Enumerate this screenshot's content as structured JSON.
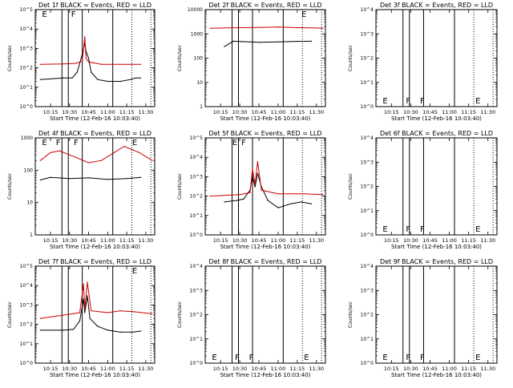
{
  "chart_data": [
    {
      "type": "line",
      "title": "Det 1f BLACK = Events, RED = LLD",
      "xlabel": "Start Time (12-Feb-16 10:03:40)",
      "ylabel": "Counts/sec",
      "y_scale": "log",
      "ylim": [
        1,
        100000
      ],
      "x_tick_labels": [
        "10:15",
        "10:30",
        "10:45",
        "11:00",
        "11:15",
        "11:30"
      ],
      "y_tick_labels": [
        "10^0",
        "10^1",
        "10^2",
        "10^3",
        "10^4",
        "10^5"
      ],
      "y_ticks": [
        1,
        10,
        100,
        1000,
        10000,
        100000
      ],
      "markers": [
        {
          "label": "E",
          "x": "10:07"
        },
        {
          "label": "F",
          "x": "10:30"
        }
      ],
      "series": [
        {
          "name": "Events",
          "color": "#000000",
          "x": [
            "10:07",
            "10:25",
            "10:32",
            "10:36",
            "10:40",
            "10:42",
            "10:43",
            "10:45",
            "10:47",
            "10:52",
            "11:00",
            "11:10",
            "11:18",
            "11:22",
            "11:26"
          ],
          "values": [
            25,
            30,
            30,
            60,
            500,
            1800,
            700,
            300,
            60,
            25,
            20,
            20,
            25,
            30,
            30
          ]
        },
        {
          "name": "LLD",
          "color": "#cc0000",
          "x": [
            "10:07",
            "10:25",
            "10:35",
            "10:40",
            "10:42",
            "10:43",
            "10:45",
            "10:55",
            "11:10",
            "11:26"
          ],
          "values": [
            150,
            160,
            170,
            220,
            4000,
            300,
            200,
            150,
            150,
            150
          ]
        }
      ]
    },
    {
      "type": "line",
      "title": "Det 2f BLACK = Events, RED = LLD",
      "xlabel": "Start Time (12-Feb-16 10:03:40)",
      "ylabel": "Counts/sec",
      "y_scale": "log",
      "ylim": [
        1,
        10000
      ],
      "x_tick_labels": [
        "10:15",
        "10:30",
        "10:45",
        "11:00",
        "11:15",
        "11:30"
      ],
      "y_tick_labels": [
        "1",
        "10",
        "100",
        "1000",
        "10000"
      ],
      "y_ticks": [
        1,
        10,
        100,
        1000,
        10000
      ],
      "markers": [
        {
          "label": "E",
          "x": "11:17"
        }
      ],
      "series": [
        {
          "name": "Events",
          "color": "#000000",
          "x": [
            "10:18",
            "10:25",
            "10:32",
            "10:45",
            "11:00",
            "11:15",
            "11:26"
          ],
          "values": [
            300,
            500,
            480,
            450,
            470,
            490,
            500
          ]
        },
        {
          "name": "LLD",
          "color": "#cc0000",
          "x": [
            "10:07",
            "10:30",
            "10:45",
            "11:00",
            "11:15",
            "11:30",
            "11:35"
          ],
          "values": [
            1700,
            1800,
            1850,
            1900,
            1800,
            1750,
            1700
          ]
        }
      ]
    },
    {
      "type": "line",
      "title": "Det 3f BLACK = Events, RED = LLD",
      "xlabel": "Start Time (12-Feb-16 10:03:40)",
      "ylabel": "Counts/sec",
      "y_scale": "log",
      "ylim": [
        1,
        10000
      ],
      "x_tick_labels": [
        "10:15",
        "10:30",
        "10:45",
        "11:00",
        "11:15",
        "11:30"
      ],
      "y_tick_labels": [
        "10^0",
        "10^1",
        "10^2",
        "10^3",
        "10^4"
      ],
      "y_ticks": [
        1,
        10,
        100,
        1000,
        10000
      ],
      "markers": [
        {
          "label": "E",
          "x": "10:07"
        },
        {
          "label": "F",
          "x": "10:25"
        },
        {
          "label": "F",
          "x": "10:36"
        },
        {
          "label": "E",
          "x": "11:19"
        }
      ],
      "series": []
    },
    {
      "type": "line",
      "title": "Det 4f BLACK = Events, RED = LLD",
      "xlabel": "Start Time (12-Feb-16 10:03:40)",
      "ylabel": "Counts/sec",
      "y_scale": "log",
      "ylim": [
        1,
        1000
      ],
      "x_tick_labels": [
        "10:15",
        "10:30",
        "10:45",
        "11:00",
        "11:15",
        "11:30"
      ],
      "y_tick_labels": [
        "1",
        "10",
        "100",
        "1000"
      ],
      "y_ticks": [
        1,
        10,
        100,
        1000
      ],
      "markers": [
        {
          "label": "E",
          "x": "10:07"
        },
        {
          "label": "F",
          "x": "10:18"
        },
        {
          "label": "F",
          "x": "10:32"
        },
        {
          "label": "E",
          "x": "11:18"
        }
      ],
      "series": [
        {
          "name": "Events",
          "color": "#000000",
          "x": [
            "10:07",
            "10:15",
            "10:30",
            "10:45",
            "11:00",
            "11:15",
            "11:26"
          ],
          "values": [
            50,
            60,
            55,
            58,
            52,
            55,
            60
          ]
        },
        {
          "name": "LLD",
          "color": "#cc0000",
          "x": [
            "10:07",
            "10:15",
            "10:22",
            "10:35",
            "10:45",
            "10:55",
            "11:05",
            "11:13",
            "11:25",
            "11:35"
          ],
          "values": [
            200,
            350,
            400,
            250,
            170,
            200,
            350,
            550,
            350,
            200
          ]
        }
      ]
    },
    {
      "type": "line",
      "title": "Det 5f BLACK = Events, RED = LLD",
      "xlabel": "Start Time (12-Feb-16 10:03:40)",
      "ylabel": "Counts/sec",
      "y_scale": "log",
      "ylim": [
        1,
        100000
      ],
      "x_tick_labels": [
        "10:15",
        "10:30",
        "10:45",
        "11:00",
        "11:15",
        "11:30"
      ],
      "y_tick_labels": [
        "10^0",
        "10^1",
        "10^2",
        "10^3",
        "10^4",
        "10^5"
      ],
      "y_ticks": [
        1,
        10,
        100,
        1000,
        10000,
        100000
      ],
      "markers": [
        {
          "label": "E",
          "x": "10:23"
        },
        {
          "label": "F",
          "x": "10:30"
        }
      ],
      "series": [
        {
          "name": "Events",
          "color": "#000000",
          "x": [
            "10:18",
            "10:28",
            "10:33",
            "10:38",
            "10:40",
            "10:42",
            "10:44",
            "10:47",
            "10:52",
            "11:00",
            "11:10",
            "11:18",
            "11:26"
          ],
          "values": [
            50,
            60,
            70,
            200,
            1000,
            300,
            1500,
            300,
            60,
            25,
            40,
            50,
            40
          ]
        },
        {
          "name": "LLD",
          "color": "#cc0000",
          "x": [
            "10:07",
            "10:30",
            "10:38",
            "10:40",
            "10:42",
            "10:44",
            "10:47",
            "11:00",
            "11:20",
            "11:35"
          ],
          "values": [
            100,
            120,
            150,
            2500,
            400,
            6000,
            200,
            130,
            130,
            120
          ]
        }
      ]
    },
    {
      "type": "line",
      "title": "Det 6f BLACK = Events, RED = LLD",
      "xlabel": "Start Time (12-Feb-16 10:03:40)",
      "ylabel": "Counts/sec",
      "y_scale": "log",
      "ylim": [
        1,
        10000
      ],
      "x_tick_labels": [
        "10:15",
        "10:30",
        "10:45",
        "11:00",
        "11:15",
        "11:30"
      ],
      "y_tick_labels": [
        "10^0",
        "10^1",
        "10^2",
        "10^3",
        "10^4"
      ],
      "y_ticks": [
        1,
        10,
        100,
        1000,
        10000
      ],
      "markers": [
        {
          "label": "E",
          "x": "10:07"
        },
        {
          "label": "F",
          "x": "10:25"
        },
        {
          "label": "F",
          "x": "10:36"
        },
        {
          "label": "E",
          "x": "11:19"
        }
      ],
      "series": []
    },
    {
      "type": "line",
      "title": "Det 7f BLACK = Events, RED = LLD",
      "xlabel": "Start Time (12-Feb-16 10:03:40)",
      "ylabel": "Counts/sec",
      "y_scale": "log",
      "ylim": [
        1,
        100000
      ],
      "x_tick_labels": [
        "10:15",
        "10:30",
        "10:45",
        "11:00",
        "11:15",
        "11:30"
      ],
      "y_tick_labels": [
        "10^0",
        "10^1",
        "10^2",
        "10^3",
        "10^4",
        "10^5"
      ],
      "y_ticks": [
        1,
        10,
        100,
        1000,
        10000,
        100000
      ],
      "markers": [
        {
          "label": "E",
          "x": "11:18"
        }
      ],
      "series": [
        {
          "name": "Events",
          "color": "#000000",
          "x": [
            "10:07",
            "10:25",
            "10:33",
            "10:38",
            "10:41",
            "10:42",
            "10:44",
            "10:46",
            "10:52",
            "11:00",
            "11:10",
            "11:20",
            "11:26"
          ],
          "values": [
            50,
            50,
            55,
            150,
            2000,
            400,
            3000,
            200,
            80,
            50,
            40,
            40,
            45
          ]
        },
        {
          "name": "LLD",
          "color": "#cc0000",
          "x": [
            "10:07",
            "10:25",
            "10:38",
            "10:41",
            "10:42",
            "10:44",
            "10:47",
            "11:00",
            "11:10",
            "11:20",
            "11:35"
          ],
          "values": [
            200,
            300,
            400,
            12000,
            600,
            15000,
            500,
            400,
            500,
            450,
            350
          ]
        }
      ]
    },
    {
      "type": "line",
      "title": "Det 8f BLACK = Events, RED = LLD",
      "xlabel": "Start Time (12-Feb-16 10:03:40)",
      "ylabel": "Counts/sec",
      "y_scale": "log",
      "ylim": [
        1,
        10000
      ],
      "x_tick_labels": [
        "10:15",
        "10:30",
        "10:45",
        "11:00",
        "11:15",
        "11:30"
      ],
      "y_tick_labels": [
        "10^0",
        "10^1",
        "10^2",
        "10^3",
        "10^4"
      ],
      "y_ticks": [
        1,
        10,
        100,
        1000,
        10000
      ],
      "markers": [
        {
          "label": "E",
          "x": "10:07"
        },
        {
          "label": "F",
          "x": "10:25"
        },
        {
          "label": "F",
          "x": "10:36"
        },
        {
          "label": "E",
          "x": "11:19"
        }
      ],
      "series": []
    },
    {
      "type": "line",
      "title": "Det 9f BLACK = Events, RED = LLD",
      "xlabel": "Start Time (12-Feb-16 10:03:40)",
      "ylabel": "Counts/sec",
      "y_scale": "log",
      "ylim": [
        1,
        10000
      ],
      "x_tick_labels": [
        "10:15",
        "10:30",
        "10:45",
        "11:00",
        "11:15",
        "11:30"
      ],
      "y_tick_labels": [
        "10^0",
        "10^1",
        "10^2",
        "10^3",
        "10^4"
      ],
      "y_ticks": [
        1,
        10,
        100,
        1000,
        10000
      ],
      "markers": [
        {
          "label": "E",
          "x": "10:07"
        },
        {
          "label": "F",
          "x": "10:25"
        },
        {
          "label": "F",
          "x": "10:36"
        },
        {
          "label": "E",
          "x": "11:19"
        }
      ],
      "series": []
    }
  ],
  "x_axis": {
    "range": [
      "10:03",
      "11:37"
    ],
    "tick_values": [
      "10:15",
      "10:30",
      "10:45",
      "11:00",
      "11:15",
      "11:30"
    ]
  },
  "time_markers": {
    "solid": [
      "10:24",
      "10:29",
      "10:40",
      "11:04"
    ],
    "dotted": [
      "11:19",
      "11:34"
    ]
  }
}
